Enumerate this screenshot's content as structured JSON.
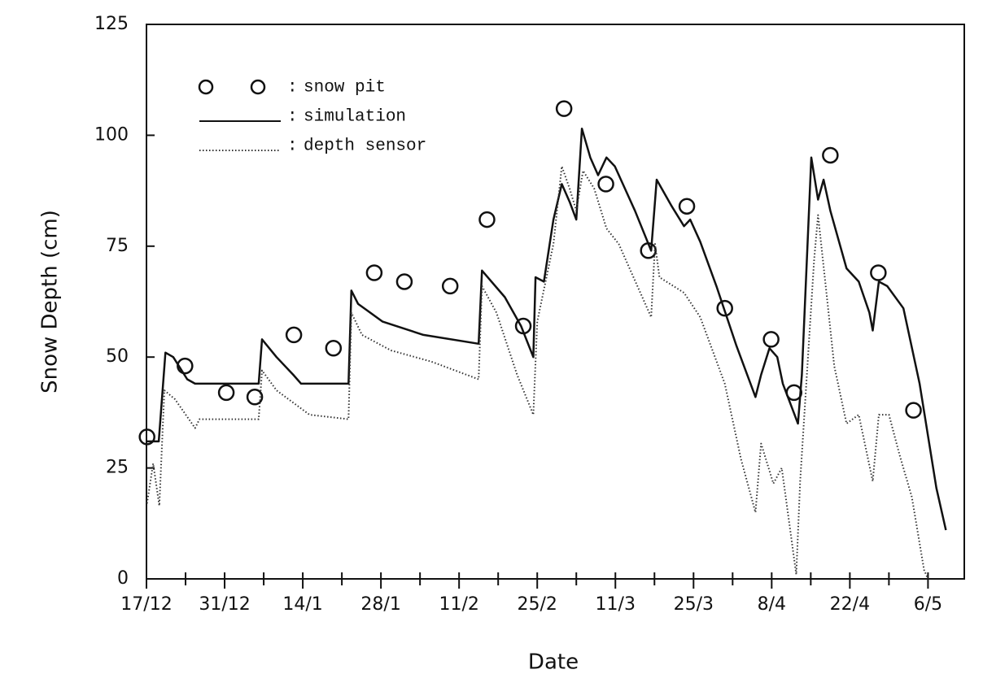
{
  "chart_data": {
    "type": "line",
    "xlabel": "Date",
    "ylabel": "Snow Depth (cm)",
    "xlim": [
      0,
      146.5
    ],
    "ylim": [
      0,
      125
    ],
    "xticks": [
      {
        "value": 0,
        "label": "17/12"
      },
      {
        "value": 14,
        "label": "31/12"
      },
      {
        "value": 28,
        "label": "14/1"
      },
      {
        "value": 42,
        "label": "28/1"
      },
      {
        "value": 56,
        "label": "11/2"
      },
      {
        "value": 70,
        "label": "25/2"
      },
      {
        "value": 84,
        "label": "11/3"
      },
      {
        "value": 98,
        "label": "25/3"
      },
      {
        "value": 112,
        "label": "8/4"
      },
      {
        "value": 126,
        "label": "22/4"
      },
      {
        "value": 140,
        "label": "6/5"
      }
    ],
    "xminorticks": [
      7,
      21,
      35,
      49,
      63,
      77,
      91,
      105,
      119,
      133
    ],
    "yticks": [
      0,
      25,
      50,
      75,
      100,
      125
    ],
    "legend_separator": ":",
    "legend": "upper left",
    "series": [
      {
        "name": "snow pit",
        "color": "#111",
        "style": "marker",
        "x": [
          0.1,
          6.9,
          14.3,
          19.4,
          26.4,
          33.5,
          40.8,
          46.2,
          54.4,
          61.0,
          67.5,
          74.8,
          82.3,
          89.9,
          96.8,
          103.6,
          111.9,
          116.0,
          122.5,
          131.1,
          137.4
        ],
        "values": [
          32,
          48,
          42,
          41,
          55,
          52,
          69,
          67,
          66,
          81,
          57,
          106,
          89,
          74,
          84,
          61,
          54,
          42,
          95.5,
          69,
          38
        ]
      },
      {
        "name": "simulation",
        "color": "#111",
        "style": "solid",
        "x": [
          0.1,
          2.2,
          3.4,
          4.8,
          7.3,
          8.7,
          20.1,
          20.7,
          23.3,
          26.3,
          27.7,
          36.2,
          36.7,
          37.9,
          42.3,
          49.6,
          59.5,
          60.1,
          64.2,
          67.1,
          69.3,
          69.7,
          71.2,
          72.9,
          74.4,
          75.8,
          77.0,
          78.0,
          79.5,
          80.9,
          82.4,
          83.9,
          87.5,
          90.4,
          91.4,
          94.1,
          96.3,
          97.4,
          99.2,
          102.1,
          105.7,
          109.1,
          110.1,
          111.6,
          113.0,
          114.0,
          116.7,
          117.4,
          119.1,
          120.3,
          121.3,
          122.5,
          125.4,
          127.6,
          129.5,
          130.1,
          131.2,
          132.7,
          135.6,
          138.5,
          141.5,
          143.2
        ],
        "values": [
          31,
          31,
          51,
          50,
          45,
          44,
          44,
          54,
          50,
          46,
          44,
          44,
          65,
          62,
          58,
          55,
          53,
          69.5,
          63.5,
          57,
          50,
          68,
          67,
          81,
          89,
          85,
          81,
          101.5,
          95,
          91,
          95,
          93,
          83,
          74,
          90,
          84,
          79.5,
          81,
          76,
          66,
          52.5,
          41,
          46,
          52,
          50,
          44,
          35,
          46,
          95,
          85.5,
          90,
          83,
          70,
          67,
          60,
          56,
          67,
          66,
          61,
          44,
          20.5,
          11
        ]
      },
      {
        "name": "depth sensor",
        "color": "#333",
        "style": "dotted",
        "x": [
          0.1,
          1.2,
          2.3,
          3.2,
          5.1,
          8.7,
          9.5,
          20.1,
          20.7,
          23.3,
          29.2,
          36.2,
          36.7,
          38.6,
          43.8,
          51.0,
          59.5,
          60.1,
          62.7,
          66.4,
          69.3,
          70.0,
          72.9,
          74.4,
          75.8,
          77.0,
          78.2,
          80.2,
          82.4,
          84.6,
          90.4,
          91.1,
          91.9,
          96.3,
          99.2,
          103.6,
          106.5,
          109.1,
          110.1,
          112.3,
          113.8,
          116.4,
          117.1,
          119.6,
          120.3,
          121.8,
          123.2,
          125.4,
          127.6,
          130.1,
          131.2,
          133.0,
          134.9,
          137.1,
          139.3,
          140.0
        ],
        "values": [
          17,
          26,
          16.5,
          42.5,
          40.5,
          34,
          36,
          36,
          47,
          42.5,
          37,
          36,
          60,
          55,
          51.5,
          49,
          45,
          66,
          60,
          46,
          37,
          58,
          75.5,
          93,
          88,
          83,
          92,
          88,
          79,
          75.5,
          59,
          75.5,
          68,
          64.5,
          59,
          44,
          27,
          15,
          30.5,
          21.5,
          25,
          1,
          22,
          72,
          82,
          64.5,
          48,
          35,
          37,
          22,
          37,
          37,
          28,
          18.5,
          2,
          0
        ]
      }
    ]
  }
}
